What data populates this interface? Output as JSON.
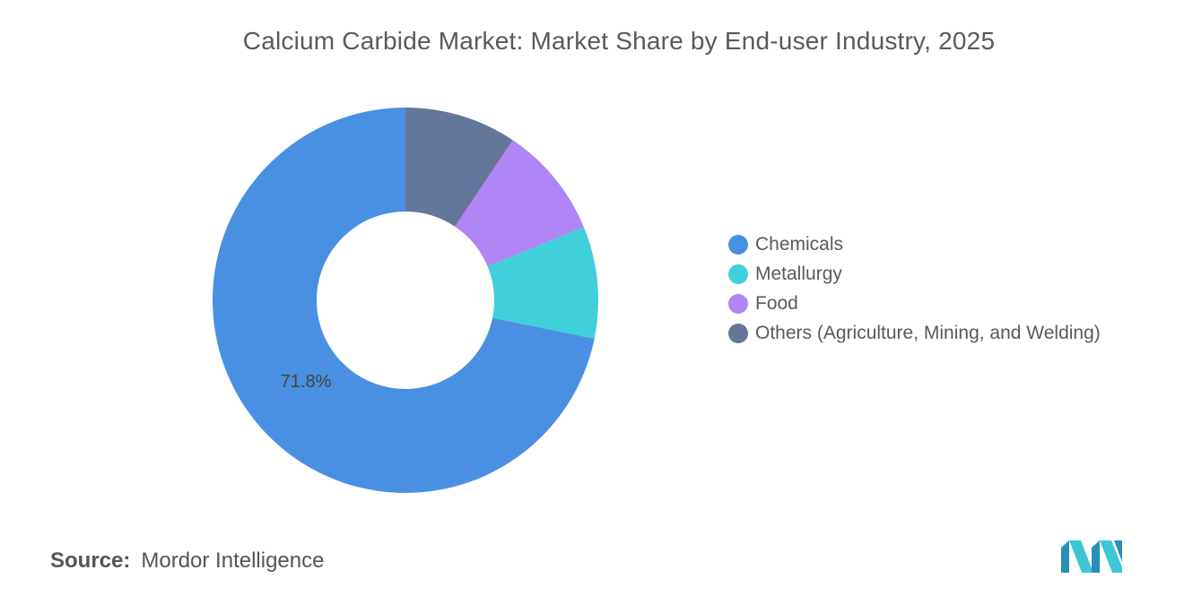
{
  "chart_data": {
    "type": "pie",
    "title": "Calcium Carbide Market: Market Share by End-user Industry, 2025",
    "categories": [
      "Chemicals",
      "Metallurgy",
      "Food",
      "Others (Agriculture, Mining, and Welding)"
    ],
    "values": [
      71.8,
      9.4,
      9.4,
      9.4
    ],
    "colors": [
      "#4a90e2",
      "#3fd0da",
      "#b085f5",
      "#64769a"
    ],
    "data_labels": [
      "71.8%"
    ],
    "donut": true,
    "legend_position": "right"
  },
  "source": {
    "label": "Source:",
    "value": "Mordor Intelligence"
  },
  "logo": {
    "icon": "mordor-intelligence-logo"
  }
}
